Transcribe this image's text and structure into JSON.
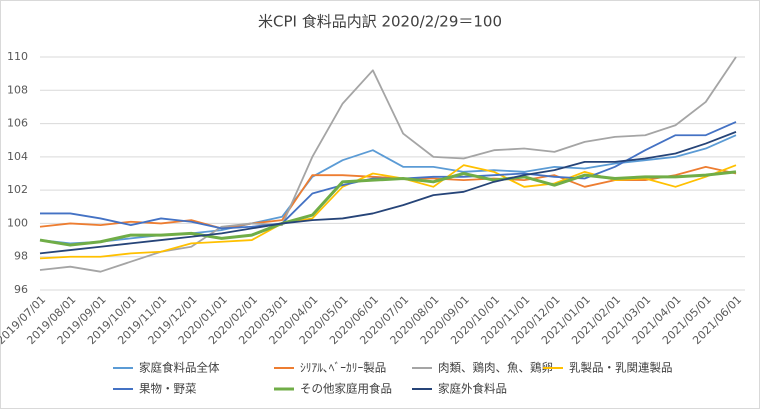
{
  "chart_data": {
    "type": "line",
    "title": "米CPI 食料品内訳 2020/2/29＝100",
    "categories": [
      "2019/07/01",
      "2019/08/01",
      "2019/09/01",
      "2019/10/01",
      "2019/11/01",
      "2019/12/01",
      "2020/01/01",
      "2020/02/01",
      "2020/03/01",
      "2020/04/01",
      "2020/05/01",
      "2020/06/01",
      "2020/07/01",
      "2020/08/01",
      "2020/09/01",
      "2020/10/01",
      "2020/11/01",
      "2020/12/01",
      "2021/01/01",
      "2021/02/01",
      "2021/03/01",
      "2021/04/01",
      "2021/05/01",
      "2021/06/01"
    ],
    "ylim": [
      96,
      110
    ],
    "yticks": [
      96,
      98,
      100,
      102,
      104,
      106,
      108,
      110
    ],
    "grid": true,
    "series": [
      {
        "name": "家庭食料品全体",
        "color": "#5b9bd5",
        "values": [
          99.0,
          98.8,
          98.9,
          99.1,
          99.3,
          99.4,
          99.6,
          100.0,
          100.4,
          102.8,
          103.8,
          104.4,
          103.4,
          103.4,
          103.1,
          103.2,
          103.1,
          103.4,
          103.3,
          103.6,
          103.8,
          104.0,
          104.5,
          105.3
        ]
      },
      {
        "name": "ｼﾘｱﾙ､ﾍﾞｰｶﾘｰ製品",
        "color": "#ed7d31",
        "values": [
          99.8,
          100.0,
          99.9,
          100.1,
          100.0,
          100.2,
          99.7,
          100.0,
          100.2,
          102.9,
          102.9,
          102.8,
          102.7,
          102.7,
          102.6,
          102.7,
          102.6,
          102.9,
          102.2,
          102.6,
          102.6,
          102.9,
          103.4,
          103.0
        ]
      },
      {
        "name": "肉類、鶏肉、魚、鶏卵",
        "color": "#a5a5a5",
        "values": [
          97.2,
          97.4,
          97.1,
          97.7,
          98.3,
          98.6,
          99.8,
          100.0,
          99.9,
          104.0,
          107.2,
          109.2,
          105.4,
          104.0,
          103.9,
          104.4,
          104.5,
          104.3,
          104.9,
          105.2,
          105.3,
          105.9,
          107.3,
          110.0
        ]
      },
      {
        "name": "乳製品・乳関連製品",
        "color": "#ffc000",
        "values": [
          97.9,
          98.0,
          98.0,
          98.2,
          98.3,
          98.8,
          98.9,
          99.0,
          100.0,
          100.3,
          102.2,
          103.0,
          102.7,
          102.2,
          103.5,
          103.1,
          102.2,
          102.4,
          103.1,
          102.6,
          102.7,
          102.2,
          102.8,
          103.5
        ]
      },
      {
        "name": "果物・野菜",
        "color": "#4472c4",
        "values": [
          100.6,
          100.6,
          100.3,
          99.9,
          100.3,
          100.1,
          99.7,
          99.8,
          100.0,
          101.8,
          102.3,
          102.7,
          102.7,
          102.8,
          102.8,
          102.9,
          103.0,
          102.8,
          102.7,
          103.4,
          104.4,
          105.3,
          105.3,
          106.1
        ]
      },
      {
        "name": "その他家庭用食品",
        "color": "#70ad47",
        "values": [
          99.0,
          98.7,
          98.9,
          99.3,
          99.3,
          99.4,
          99.1,
          99.3,
          100.0,
          100.5,
          102.5,
          102.6,
          102.7,
          102.5,
          103.0,
          102.6,
          102.8,
          102.3,
          102.9,
          102.7,
          102.8,
          102.8,
          102.9,
          103.1
        ]
      },
      {
        "name": "家庭外食料品",
        "color": "#264478",
        "values": [
          98.2,
          98.4,
          98.6,
          98.8,
          99.0,
          99.2,
          99.4,
          99.7,
          100.0,
          100.2,
          100.3,
          100.6,
          101.1,
          101.7,
          101.9,
          102.5,
          102.9,
          103.2,
          103.7,
          103.7,
          103.9,
          104.2,
          104.8,
          105.5
        ]
      }
    ]
  }
}
